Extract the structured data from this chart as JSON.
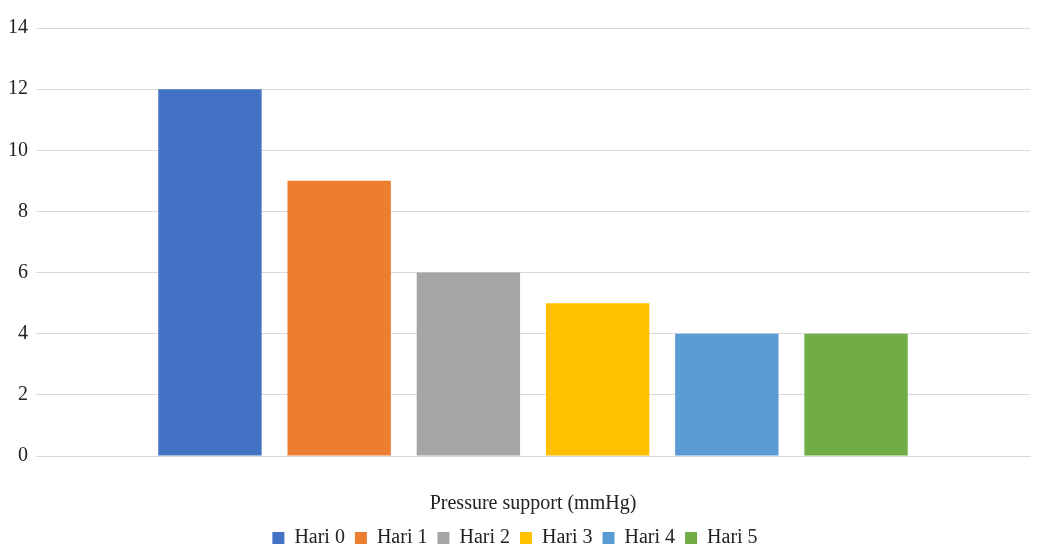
{
  "chart_data": {
    "type": "bar",
    "xlabel": "Pressure support (mmHg)",
    "categories": [
      null
    ],
    "series": [
      {
        "name": "Hari 0",
        "color": "#4472c4",
        "values": [
          12
        ]
      },
      {
        "name": "Hari 1",
        "color": "#ed7d31",
        "values": [
          9
        ]
      },
      {
        "name": "Hari 2",
        "color": "#a5a5a5",
        "values": [
          6
        ]
      },
      {
        "name": "Hari 3",
        "color": "#ffc000",
        "values": [
          5
        ]
      },
      {
        "name": "Hari 4",
        "color": "#5b9bd5",
        "values": [
          4
        ]
      },
      {
        "name": "Hari 5",
        "color": "#70ad47",
        "values": [
          4
        ]
      }
    ],
    "ylim": [
      0,
      14
    ],
    "yticks": [
      0,
      2,
      4,
      6,
      8,
      10,
      12,
      14
    ],
    "grid": "y",
    "legend": "bottom"
  }
}
